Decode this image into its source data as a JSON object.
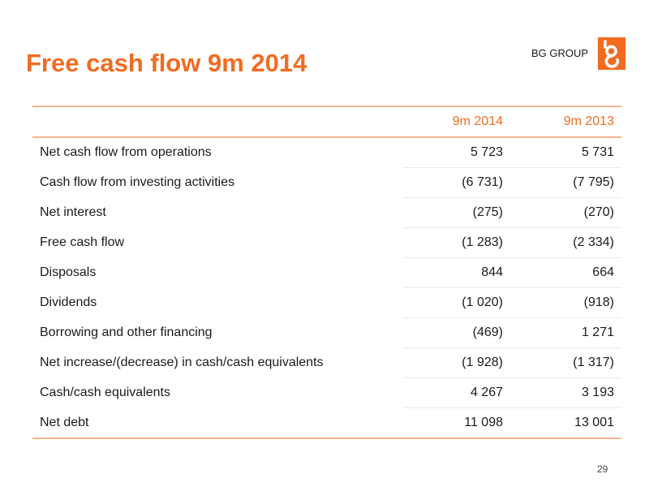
{
  "slide": {
    "title": "Free cash flow 9m 2014",
    "brand": "BG GROUP",
    "page_number": "29"
  },
  "colors": {
    "accent": "#f26b21",
    "rule": "#f6b48e"
  },
  "icons": {
    "logo": "bg-group-logo-icon"
  },
  "table": {
    "headers": [
      "",
      "9m 2014",
      "9m 2013"
    ],
    "rows": [
      {
        "label": "Net cash flow from operations",
        "v2014": "5 723",
        "v2013": "5 731"
      },
      {
        "label": "Cash flow from investing activities",
        "v2014": "(6 731)",
        "v2013": "(7 795)"
      },
      {
        "label": "Net interest",
        "v2014": "(275)",
        "v2013": "(270)"
      },
      {
        "label": "Free cash flow",
        "v2014": "(1 283)",
        "v2013": "(2 334)"
      },
      {
        "label": "Disposals",
        "v2014": "844",
        "v2013": "664"
      },
      {
        "label": "Dividends",
        "v2014": "(1 020)",
        "v2013": "(918)"
      },
      {
        "label": "Borrowing and other financing",
        "v2014": "(469)",
        "v2013": "1 271"
      },
      {
        "label": "Net increase/(decrease) in cash/cash equivalents",
        "v2014": "(1 928)",
        "v2013": "(1 317)"
      },
      {
        "label": "Cash/cash equivalents",
        "v2014": "4 267",
        "v2013": "3 193"
      },
      {
        "label": "Net debt",
        "v2014": "11 098",
        "v2013": "13 001"
      }
    ]
  }
}
